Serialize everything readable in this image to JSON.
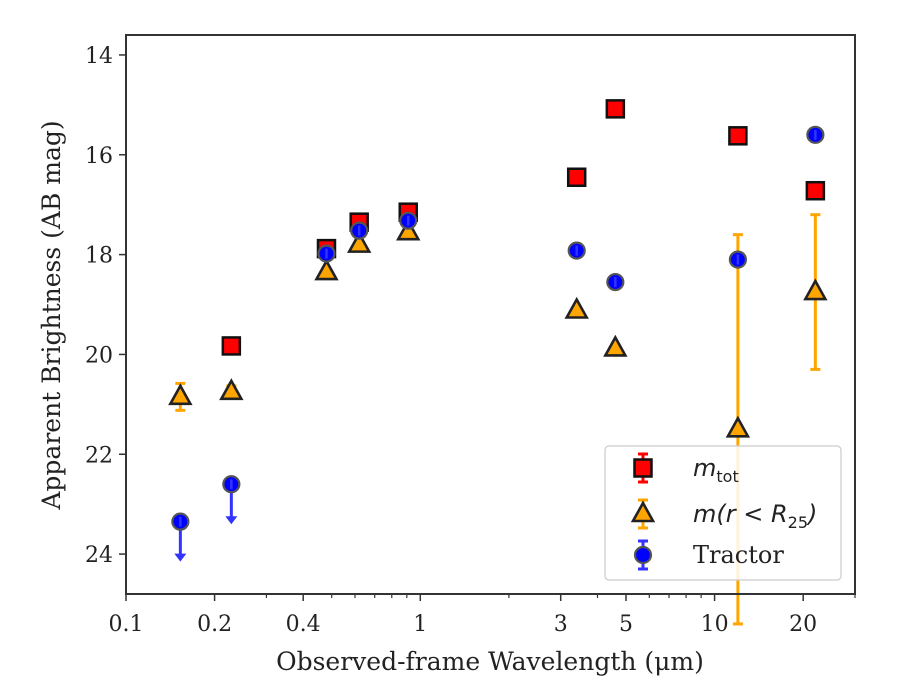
{
  "chart_data": {
    "type": "scatter",
    "xlabel": "Observed-frame Wavelength (μm)",
    "ylabel": "Apparent Brightness (AB mag)",
    "xscale": "log",
    "xlim": [
      0.1,
      30
    ],
    "ylim": [
      24.8,
      13.6
    ],
    "y_inverted": true,
    "grid": false,
    "legend_position": "lower-right",
    "xticks": [
      {
        "value": 0.1,
        "label": "0.1"
      },
      {
        "value": 0.2,
        "label": "0.2"
      },
      {
        "value": 0.4,
        "label": "0.4"
      },
      {
        "value": 1,
        "label": "1"
      },
      {
        "value": 3,
        "label": "3"
      },
      {
        "value": 5,
        "label": "5"
      },
      {
        "value": 10,
        "label": "10"
      },
      {
        "value": 20,
        "label": "20"
      }
    ],
    "yticks": [
      {
        "value": 14,
        "label": "14"
      },
      {
        "value": 16,
        "label": "16"
      },
      {
        "value": 18,
        "label": "18"
      },
      {
        "value": 20,
        "label": "20"
      },
      {
        "value": 22,
        "label": "22"
      },
      {
        "value": 24,
        "label": "24"
      }
    ],
    "series": [
      {
        "name": "m_tot",
        "legend_main": "m",
        "legend_sub": "tot",
        "marker": "square",
        "color": "#ff0000",
        "err_color": "#ff0000",
        "points": [
          {
            "x": 0.228,
            "y": 19.83
          },
          {
            "x": 0.48,
            "y": 17.88
          },
          {
            "x": 0.62,
            "y": 17.35
          },
          {
            "x": 0.91,
            "y": 17.15
          },
          {
            "x": 3.4,
            "y": 16.45
          },
          {
            "x": 4.6,
            "y": 15.08
          },
          {
            "x": 12.0,
            "y": 15.62
          },
          {
            "x": 22.0,
            "y": 16.72
          }
        ]
      },
      {
        "name": "m(r < R25)",
        "legend_main": "m(r < R",
        "legend_sub": "25",
        "legend_tail": ")",
        "marker": "triangle",
        "color": "#ffa500",
        "err_color": "#ffa500",
        "points": [
          {
            "x": 0.153,
            "y": 20.85,
            "err_low": 0.27,
            "err_high": 0.27
          },
          {
            "x": 0.228,
            "y": 20.75,
            "err_low": 0.12,
            "err_high": 0.12
          },
          {
            "x": 0.48,
            "y": 18.35
          },
          {
            "x": 0.62,
            "y": 17.8
          },
          {
            "x": 0.91,
            "y": 17.55
          },
          {
            "x": 3.4,
            "y": 19.12
          },
          {
            "x": 4.6,
            "y": 19.88
          },
          {
            "x": 12.0,
            "y": 21.5,
            "err_low": 3.9,
            "err_high": 3.9
          },
          {
            "x": 22.0,
            "y": 18.75,
            "err_low": 1.55,
            "err_high": 1.55
          }
        ]
      },
      {
        "name": "Tractor",
        "legend_main": "Tractor",
        "marker": "circle",
        "color": "#0000ff",
        "err_color": "#3333ff",
        "points": [
          {
            "x": 0.153,
            "y": 23.35,
            "upper_limit": true
          },
          {
            "x": 0.228,
            "y": 22.6,
            "upper_limit": true
          },
          {
            "x": 0.48,
            "y": 17.98
          },
          {
            "x": 0.62,
            "y": 17.52
          },
          {
            "x": 0.91,
            "y": 17.32
          },
          {
            "x": 3.4,
            "y": 17.92
          },
          {
            "x": 4.6,
            "y": 18.55
          },
          {
            "x": 12.0,
            "y": 18.1
          },
          {
            "x": 22.0,
            "y": 15.6
          }
        ]
      }
    ]
  }
}
